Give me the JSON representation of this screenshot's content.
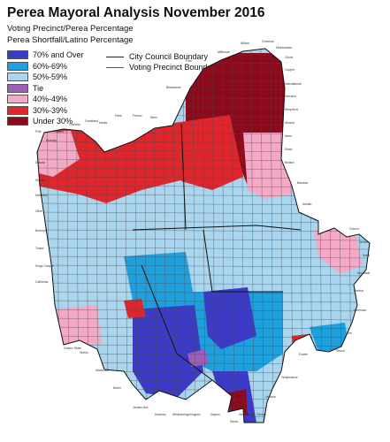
{
  "map": {
    "title": "Perea Mayoral Analysis November 2016",
    "subtitle_line1": "Voting Precinct/Perea Percentage",
    "subtitle_line2": "Perea Shortfall/Latino Percentage",
    "legend": [
      {
        "label": "70% and Over",
        "color": "#3b3bc8"
      },
      {
        "label": "60%-69%",
        "color": "#1f9fdc"
      },
      {
        "label": "50%-59%",
        "color": "#a9d6ee"
      },
      {
        "label": "Tie",
        "color": "#9b5fb7"
      },
      {
        "label": "40%-49%",
        "color": "#f4a9c7"
      },
      {
        "label": "30%-39%",
        "color": "#e0262c"
      },
      {
        "label": "Under 30%",
        "color": "#8b0a1c"
      }
    ],
    "boundary_legend": {
      "council": "City Council Boundary",
      "precinct": "Voting Precinct Boundary"
    },
    "streets": [
      "Polk",
      "Brawley",
      "Hayes",
      "Cornelia",
      "Grantland",
      "Marks",
      "Palm",
      "Fresno",
      "West",
      "Blackstone",
      "First",
      "Millbrook",
      "Willow",
      "Chestnut",
      "Minnewawa",
      "Clovis",
      "Copper",
      "International",
      "Herndon",
      "Shepherd",
      "Alluvial",
      "Nees",
      "Shaw",
      "Bullard",
      "Barstow",
      "Ashlan",
      "Dakota",
      "Shields",
      "McKinley",
      "Olive",
      "Belmont",
      "Tulare",
      "Kings Canyon",
      "California",
      "Church",
      "Jensen",
      "North",
      "Annadale",
      "Central",
      "American",
      "Elm",
      "Peach",
      "Fowler",
      "Temperance",
      "Ventura",
      "Clinton",
      "Gettysburg",
      "Sierra",
      "Dayton",
      "Hughes",
      "Whitesbridge",
      "Kearney",
      "Jensen Ave",
      "Butler",
      "Marks Ave",
      "Hinton",
      "Golden State"
    ]
  }
}
